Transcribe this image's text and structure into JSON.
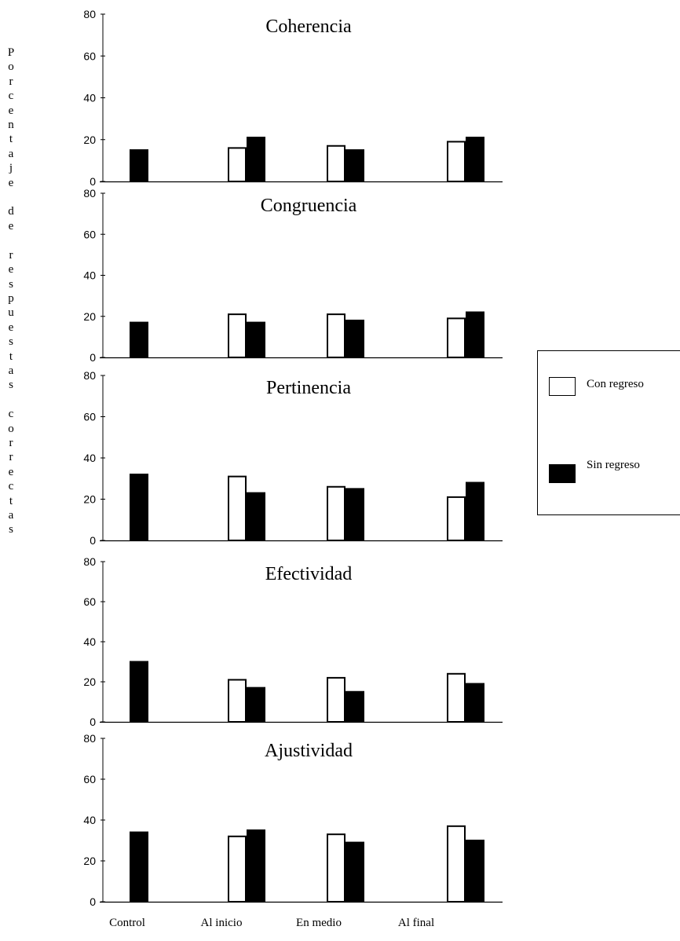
{
  "chart_data": {
    "type": "bar",
    "ylabel": "Porcentaje de respuestas correctas",
    "categories": [
      "Control",
      "Al inicio",
      "En medio",
      "Al final"
    ],
    "legend_position": "right",
    "series_styles": [
      {
        "name": "Con regreso",
        "color": "#ffffff",
        "stroke": "#000000"
      },
      {
        "name": "Sin regreso",
        "color": "#000000",
        "stroke": "#000000"
      }
    ],
    "panels": [
      {
        "title": "Coherencia",
        "ylim": [
          0,
          80
        ],
        "yticks": [
          "0",
          "20",
          "40",
          "60",
          "80"
        ],
        "series": [
          {
            "name": "Con regreso",
            "values": [
              null,
              16,
              17,
              19
            ]
          },
          {
            "name": "Sin regreso",
            "values": [
              15,
              21,
              15,
              21
            ]
          }
        ]
      },
      {
        "title": "Congruencia",
        "ylim": [
          0,
          80
        ],
        "yticks": [
          "0",
          "20",
          "40",
          "60",
          "80"
        ],
        "series": [
          {
            "name": "Con regreso",
            "values": [
              null,
              21,
              21,
              19
            ]
          },
          {
            "name": "Sin regreso",
            "values": [
              17,
              17,
              18,
              22
            ]
          }
        ]
      },
      {
        "title": "Pertinencia",
        "ylim": [
          0,
          80
        ],
        "yticks": [
          "0",
          "20",
          "40",
          "60",
          "80"
        ],
        "series": [
          {
            "name": "Con regreso",
            "values": [
              null,
              31,
              26,
              21
            ]
          },
          {
            "name": "Sin regreso",
            "values": [
              32,
              23,
              25,
              28
            ]
          }
        ]
      },
      {
        "title": "Efectividad",
        "ylim": [
          0,
          80
        ],
        "yticks": [
          "0",
          "20",
          "40",
          "60",
          "80"
        ],
        "series": [
          {
            "name": "Con regreso",
            "values": [
              null,
              21,
              22,
              24
            ]
          },
          {
            "name": "Sin regreso",
            "values": [
              30,
              17,
              15,
              19
            ]
          }
        ]
      },
      {
        "title": "Ajustividad",
        "ylim": [
          0,
          80
        ],
        "yticks": [
          "0",
          "20",
          "40",
          "60",
          "80"
        ],
        "series": [
          {
            "name": "Con regreso",
            "values": [
              null,
              32,
              33,
              37
            ]
          },
          {
            "name": "Sin regreso",
            "values": [
              34,
              35,
              29,
              30
            ]
          }
        ]
      }
    ]
  },
  "legend": {
    "items": [
      {
        "label": "Con regreso",
        "fill": "#ffffff"
      },
      {
        "label": "Sin regreso",
        "fill": "#000000"
      }
    ]
  }
}
